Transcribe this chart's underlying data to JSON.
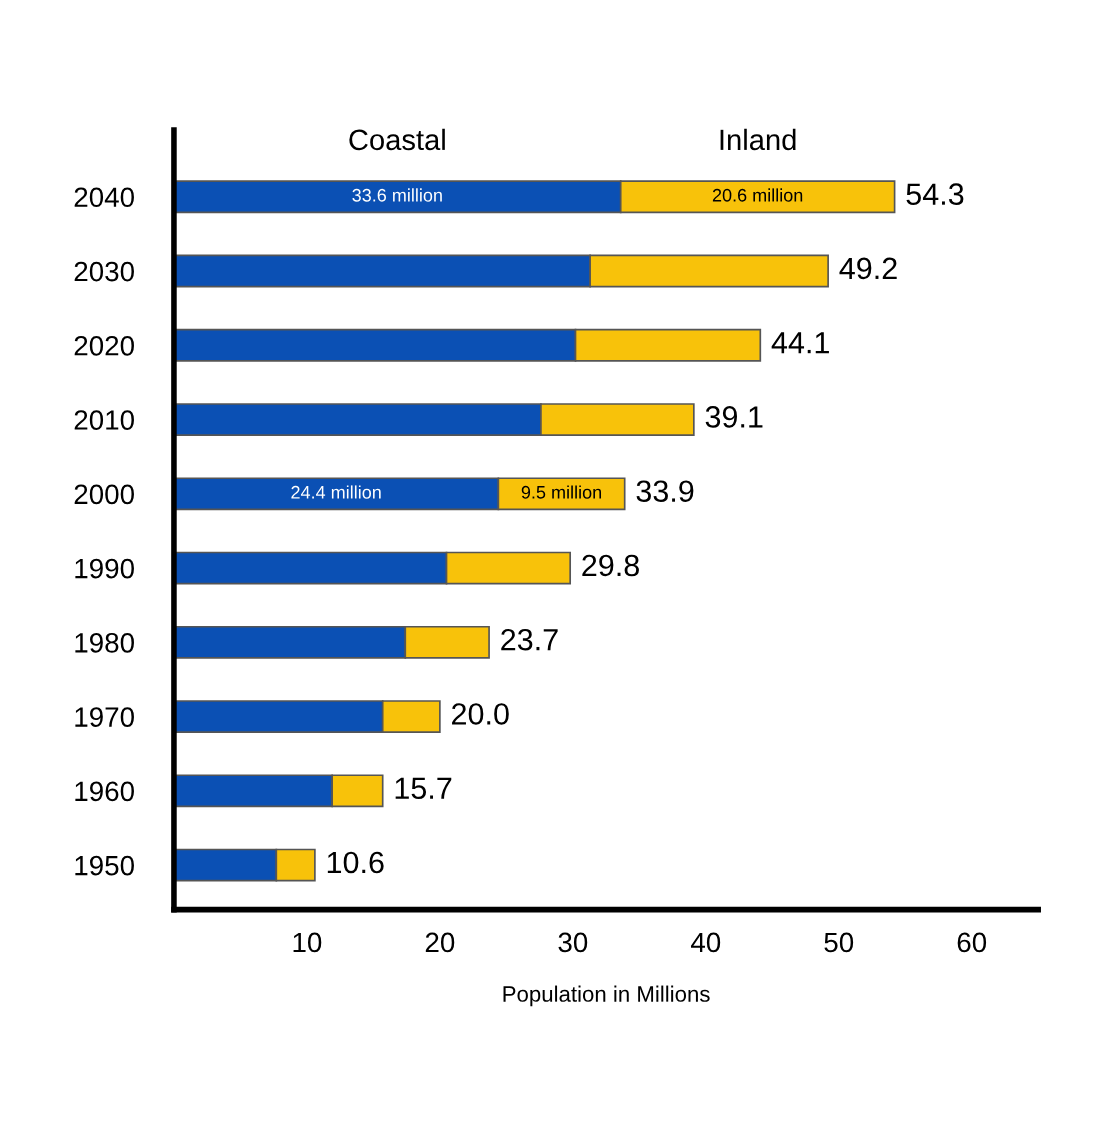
{
  "chart_data": {
    "type": "bar",
    "orientation": "horizontal",
    "stacked": true,
    "xlabel": "Population in Millions",
    "categories": [
      "2040",
      "2030",
      "2020",
      "2010",
      "2000",
      "1990",
      "1980",
      "1970",
      "1960",
      "1950"
    ],
    "series": [
      {
        "name": "Coastal",
        "color": "#0b50b4",
        "values": [
          33.6,
          31.3,
          30.2,
          27.6,
          24.4,
          20.5,
          17.4,
          15.7,
          11.9,
          7.7
        ],
        "value_labels": [
          "33.6 million",
          null,
          null,
          null,
          "24.4 million",
          null,
          null,
          null,
          null,
          null
        ]
      },
      {
        "name": "Inland",
        "color": "#f8c20a",
        "values": [
          20.6,
          17.9,
          13.9,
          11.5,
          9.5,
          9.3,
          6.3,
          4.3,
          3.8,
          2.9
        ],
        "value_labels": [
          "20.6 million",
          null,
          null,
          null,
          "9.5 million",
          null,
          null,
          null,
          null,
          null
        ]
      }
    ],
    "totals": [
      "54.3",
      "49.2",
      "44.1",
      "39.1",
      "33.9",
      "29.8",
      "23.7",
      "20.0",
      "15.7",
      "10.6"
    ],
    "xlim": [
      0,
      65
    ],
    "xticks": [
      10,
      20,
      30,
      40,
      50,
      60
    ],
    "grid": false,
    "legend": false
  }
}
